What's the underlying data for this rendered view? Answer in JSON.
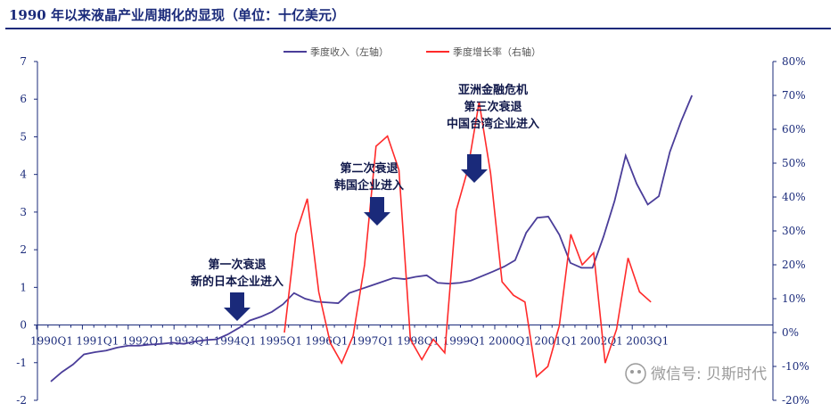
{
  "title": "1990 年以来液晶产业周期化的显现（单位：十亿美元）",
  "watermark": "微信号: 贝斯时代",
  "colors": {
    "revenue": "#4a3d99",
    "growth": "#ff2a2a",
    "axis": "#1a2a7a",
    "arrow": "#1a2a7a"
  },
  "chart_data": {
    "type": "line",
    "x_tick_labels": [
      "1990Q1",
      "1991Q1",
      "1992Q1",
      "1993Q1",
      "1994Q1",
      "1995Q1",
      "1996Q1",
      "1997Q1",
      "1998Q1",
      "1999Q1",
      "2000Q1",
      "2001Q1",
      "2002Q1",
      "2003Q1"
    ],
    "y_left": {
      "min": -2,
      "max": 7,
      "ticks": [
        "-2",
        "-1",
        "0",
        "1",
        "2",
        "3",
        "4",
        "5",
        "6",
        "7"
      ]
    },
    "y_right": {
      "min": -20,
      "max": 80,
      "ticks": [
        "-20%",
        "-10%",
        "0%",
        "10%",
        "20%",
        "30%",
        "40%",
        "50%",
        "60%",
        "70%",
        "80%"
      ]
    },
    "grid": false,
    "legend_position": "top-center",
    "series": [
      {
        "name": "季度收入（左轴）",
        "axis": "left",
        "values": [
          -1.5,
          -1.25,
          -1.05,
          -0.78,
          -0.72,
          -0.68,
          -0.6,
          -0.55,
          -0.55,
          -0.52,
          -0.5,
          -0.47,
          -0.5,
          -0.44,
          -0.4,
          -0.38,
          -0.25,
          -0.08,
          0.12,
          0.22,
          0.35,
          0.55,
          0.85,
          0.7,
          0.62,
          0.6,
          0.58,
          0.85,
          0.95,
          1.05,
          1.15,
          1.25,
          1.22,
          1.28,
          1.32,
          1.12,
          1.1,
          1.12,
          1.18,
          1.3,
          1.42,
          1.55,
          1.72,
          2.45,
          2.85,
          2.88,
          2.4,
          1.65,
          1.52,
          1.52,
          2.35,
          3.3,
          4.5,
          3.75,
          3.2,
          3.42,
          4.6,
          5.4,
          6.1
        ]
      },
      {
        "name": "季度增长率（右轴）",
        "axis": "right",
        "values": [
          0,
          29,
          39.5,
          12,
          -3,
          -9,
          -1,
          20,
          55,
          58,
          48,
          -2,
          -8,
          -2,
          -6,
          36,
          48,
          68,
          47,
          15,
          11,
          9,
          -13,
          -10,
          2,
          29,
          20,
          23.5,
          -9,
          1,
          22,
          12,
          9
        ]
      }
    ],
    "annotations": [
      {
        "lines": [
          "第一次衰退",
          "新的日本企业进入"
        ]
      },
      {
        "lines": [
          "第二次衰退",
          "韩国企业进入"
        ]
      },
      {
        "lines": [
          "亚洲金融危机",
          "第三次衰退",
          "中国台湾企业进入"
        ]
      }
    ]
  }
}
